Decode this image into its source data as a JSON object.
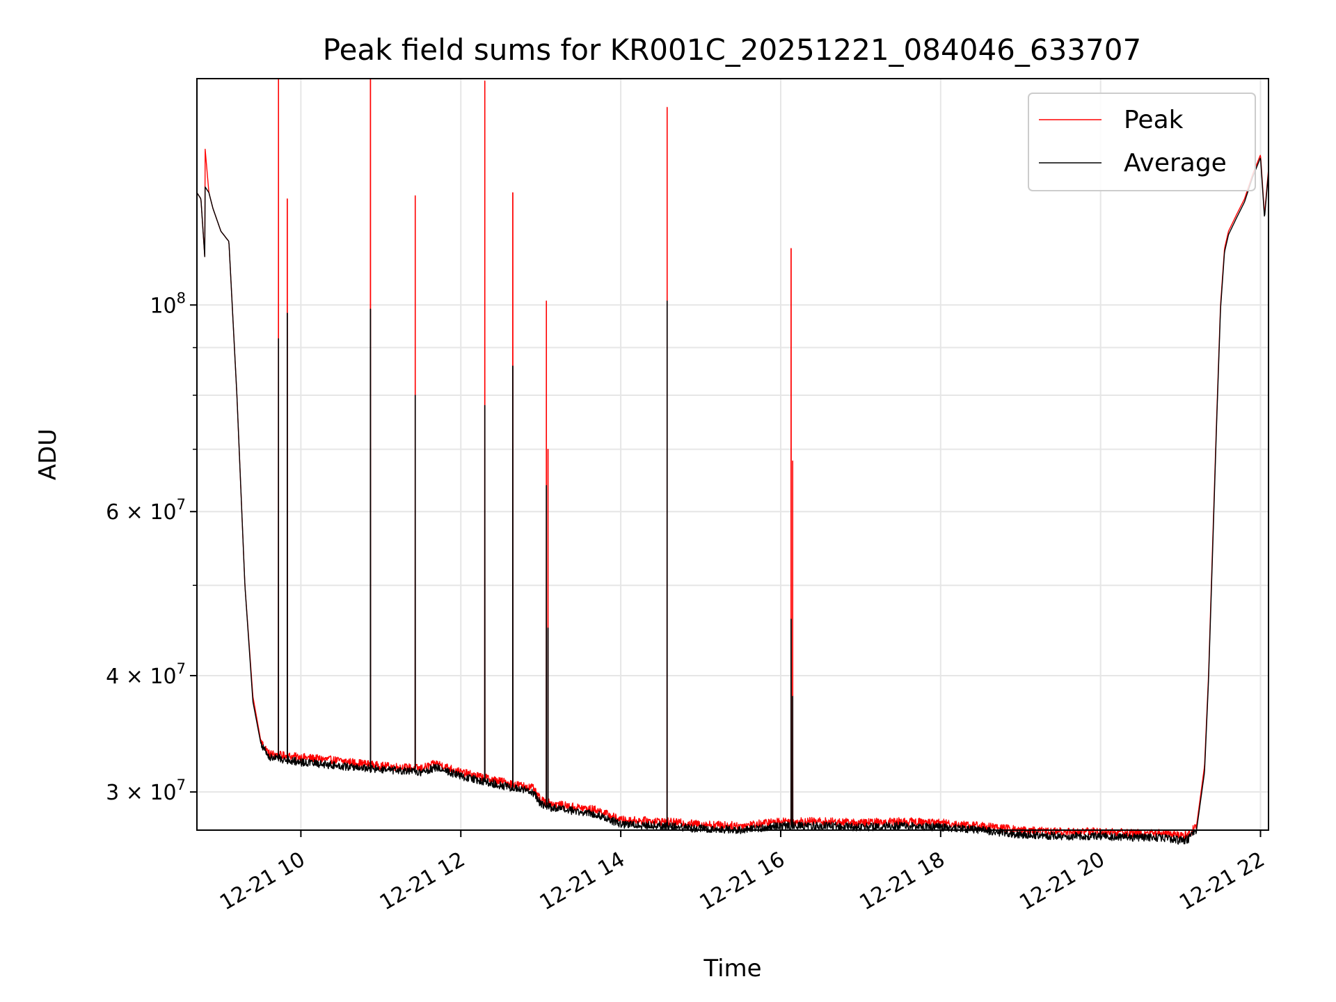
{
  "chart_data": {
    "type": "line",
    "title": "Peak field sums for KR001C_20251221_084046_633707",
    "xlabel": "Time",
    "ylabel": "ADU",
    "yscale": "log",
    "xlim_hours": [
      8.7,
      22.1
    ],
    "ylim": [
      27300000,
      175000000
    ],
    "grid": true,
    "legend_position": "top-right",
    "x_ticks": [
      {
        "hour": 10,
        "label": "12-21 10"
      },
      {
        "hour": 12,
        "label": "12-21 12"
      },
      {
        "hour": 14,
        "label": "12-21 14"
      },
      {
        "hour": 16,
        "label": "12-21 16"
      },
      {
        "hour": 18,
        "label": "12-21 18"
      },
      {
        "hour": 20,
        "label": "12-21 20"
      },
      {
        "hour": 22,
        "label": "12-21 22"
      }
    ],
    "y_major_ticks": [
      {
        "value": 100000000,
        "base": "10",
        "exp": "8",
        "mant": ""
      },
      {
        "value": 60000000,
        "base": "10",
        "exp": "7",
        "mant": "6"
      },
      {
        "value": 40000000,
        "base": "10",
        "exp": "7",
        "mant": "4"
      },
      {
        "value": 30000000,
        "base": "10",
        "exp": "7",
        "mant": "3"
      }
    ],
    "y_minor_ticks": [
      50000000,
      70000000,
      80000000,
      90000000
    ],
    "series": [
      {
        "name": "Peak",
        "color": "#ff0000",
        "x_hours": [
          8.7,
          8.75,
          8.8,
          8.8,
          8.85,
          8.9,
          9.0,
          9.1,
          9.2,
          9.3,
          9.4,
          9.5,
          9.6,
          9.8,
          10.0,
          10.5,
          11.0,
          11.5,
          11.7,
          12.0,
          12.5,
          12.9,
          13.0,
          13.1,
          13.3,
          13.7,
          14.0,
          14.5,
          15.0,
          15.5,
          16.0,
          16.5,
          17.0,
          17.5,
          18.0,
          18.5,
          19.0,
          19.5,
          20.0,
          20.5,
          20.8,
          21.0,
          21.1,
          21.2,
          21.3,
          21.35,
          21.4,
          21.45,
          21.5,
          21.55,
          21.6,
          21.7,
          21.8,
          21.9,
          22.0,
          22.05,
          22.1
        ],
        "values": [
          132000000,
          130000000,
          112000000,
          148000000,
          132000000,
          127000000,
          120000000,
          117000000,
          80000000,
          50000000,
          38000000,
          34000000,
          33000000,
          32800000,
          32700000,
          32400000,
          32000000,
          31800000,
          32200000,
          31500000,
          30800000,
          30300000,
          29400000,
          29200000,
          29000000,
          28700000,
          28000000,
          27900000,
          27700000,
          27600000,
          27900000,
          27900000,
          27800000,
          27900000,
          27800000,
          27600000,
          27300000,
          27200000,
          27200000,
          27100000,
          27100000,
          26900000,
          27000000,
          27600000,
          32000000,
          40000000,
          55000000,
          75000000,
          100000000,
          115000000,
          120000000,
          125000000,
          130000000,
          138000000,
          145000000,
          125000000,
          140000000
        ],
        "spikes": [
          {
            "hour": 9.72,
            "value": 175000000
          },
          {
            "hour": 9.83,
            "value": 130000000
          },
          {
            "hour": 10.87,
            "value": 175000000
          },
          {
            "hour": 11.43,
            "value": 131000000
          },
          {
            "hour": 12.3,
            "value": 174000000
          },
          {
            "hour": 12.65,
            "value": 132000000
          },
          {
            "hour": 13.07,
            "value": 101000000
          },
          {
            "hour": 13.09,
            "value": 70000000
          },
          {
            "hour": 14.58,
            "value": 163000000
          },
          {
            "hour": 16.13,
            "value": 115000000
          },
          {
            "hour": 16.15,
            "value": 68000000
          }
        ]
      },
      {
        "name": "Average",
        "color": "#000000",
        "x_hours": [
          8.7,
          8.75,
          8.8,
          8.8,
          8.85,
          8.9,
          9.0,
          9.1,
          9.2,
          9.3,
          9.4,
          9.5,
          9.6,
          9.8,
          10.0,
          10.5,
          11.0,
          11.5,
          11.7,
          12.0,
          12.5,
          12.9,
          13.0,
          13.1,
          13.3,
          13.7,
          14.0,
          14.5,
          15.0,
          15.5,
          16.0,
          16.5,
          17.0,
          17.5,
          18.0,
          18.5,
          19.0,
          19.5,
          20.0,
          20.5,
          20.8,
          21.0,
          21.1,
          21.2,
          21.3,
          21.35,
          21.4,
          21.45,
          21.5,
          21.55,
          21.6,
          21.7,
          21.8,
          21.9,
          22.0,
          22.05,
          22.1
        ],
        "values": [
          132000000,
          130000000,
          112000000,
          134000000,
          132000000,
          127000000,
          120000000,
          117000000,
          80000000,
          50000000,
          37500000,
          33800000,
          32700000,
          32500000,
          32300000,
          32000000,
          31700000,
          31500000,
          31900000,
          31200000,
          30500000,
          30000000,
          29100000,
          28900000,
          28700000,
          28400000,
          27700000,
          27600000,
          27400000,
          27300000,
          27600000,
          27600000,
          27500000,
          27600000,
          27500000,
          27300000,
          27000000,
          26900000,
          26900000,
          26800000,
          26800000,
          26600000,
          26700000,
          27300000,
          31500000,
          39500000,
          54000000,
          74000000,
          99000000,
          114000000,
          119000000,
          124000000,
          129000000,
          137000000,
          144000000,
          124000000,
          139000000
        ],
        "spikes": [
          {
            "hour": 9.72,
            "value": 92000000
          },
          {
            "hour": 9.83,
            "value": 98000000
          },
          {
            "hour": 10.87,
            "value": 99000000
          },
          {
            "hour": 11.43,
            "value": 80000000
          },
          {
            "hour": 12.3,
            "value": 78000000
          },
          {
            "hour": 12.65,
            "value": 86000000
          },
          {
            "hour": 13.07,
            "value": 64000000
          },
          {
            "hour": 13.09,
            "value": 45000000
          },
          {
            "hour": 14.58,
            "value": 101000000
          },
          {
            "hour": 16.13,
            "value": 46000000
          },
          {
            "hour": 16.15,
            "value": 38000000
          }
        ]
      }
    ]
  }
}
